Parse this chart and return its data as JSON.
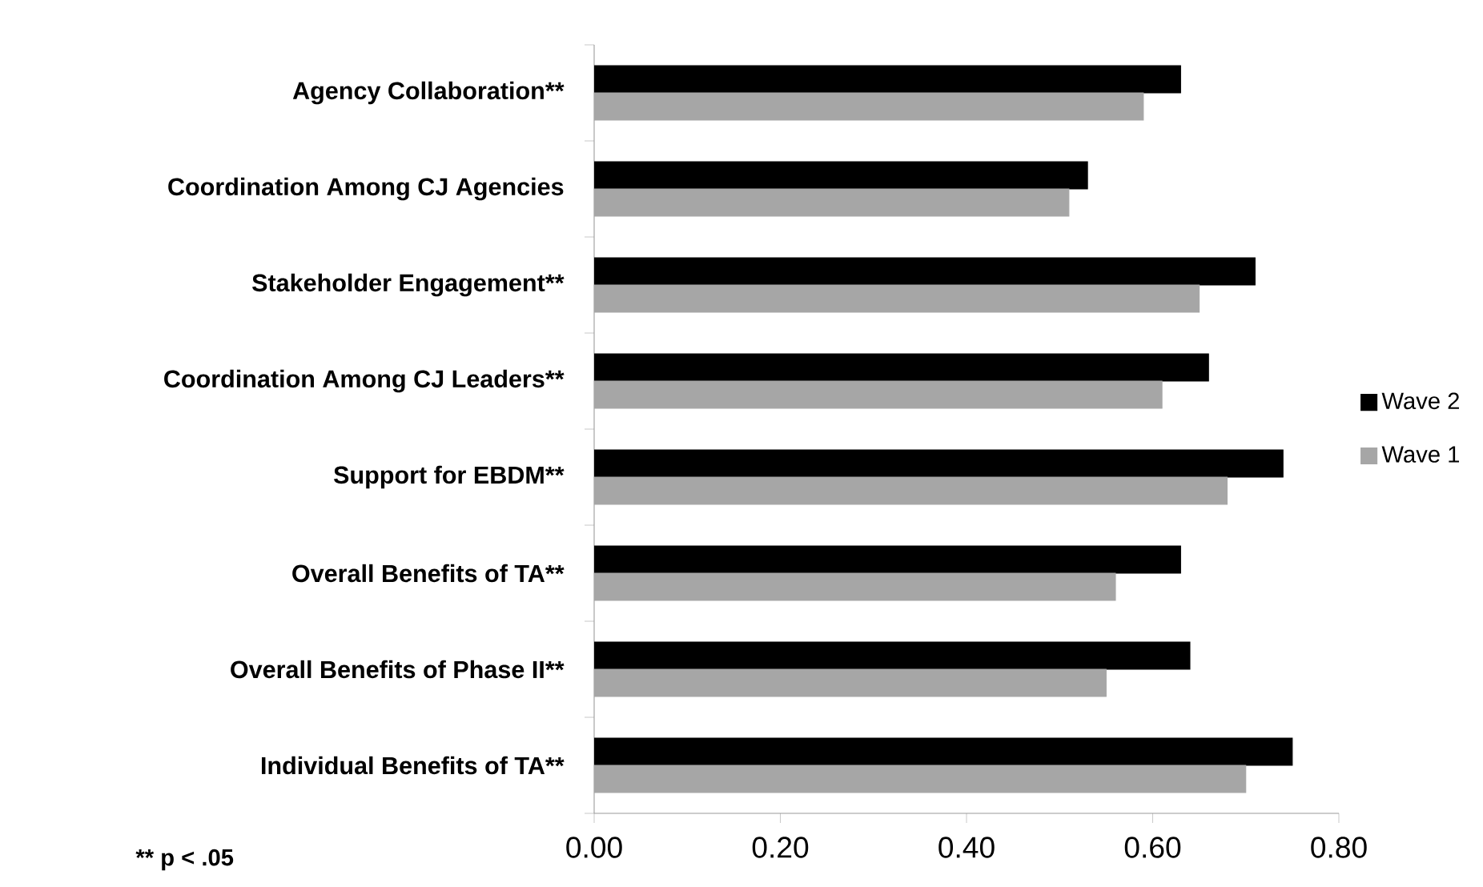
{
  "chart_data": {
    "type": "bar",
    "orientation": "horizontal",
    "categories": [
      "Agency Collaboration**",
      "Coordination Among CJ Agencies",
      "Stakeholder Engagement**",
      "Coordination Among CJ Leaders**",
      "Support for EBDM**",
      "Overall Benefits of TA**",
      "Overall Benefits of Phase II**",
      "Individual Benefits of TA**"
    ],
    "series": [
      {
        "name": "Wave 2",
        "color": "#000000",
        "values": [
          0.63,
          0.53,
          0.71,
          0.66,
          0.74,
          0.63,
          0.64,
          0.75
        ]
      },
      {
        "name": "Wave 1",
        "color": "#a6a6a6",
        "values": [
          0.59,
          0.51,
          0.65,
          0.61,
          0.68,
          0.56,
          0.55,
          0.7
        ]
      }
    ],
    "xlim": [
      0,
      0.8
    ],
    "xticks": [
      {
        "value": 0,
        "label": "0.00"
      },
      {
        "value": 0.2,
        "label": "0.20"
      },
      {
        "value": 0.4,
        "label": "0.40"
      },
      {
        "value": 0.6,
        "label": "0.60"
      },
      {
        "value": 0.8,
        "label": "0.80"
      }
    ],
    "legend": "right",
    "annotations": [
      "** p < .05"
    ]
  }
}
